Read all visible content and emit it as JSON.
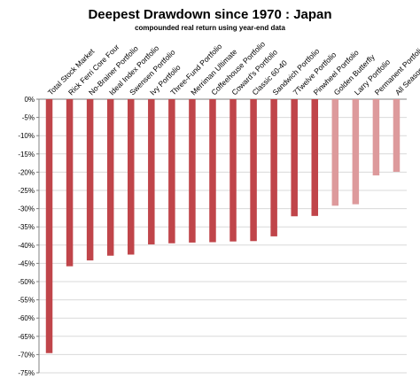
{
  "chart_data": {
    "type": "bar",
    "title": "Deepest Drawdown since 1970 : Japan",
    "subtitle": "compounded real return using year-end data",
    "xlabel": "",
    "ylabel": "",
    "ylim": [
      -75,
      0
    ],
    "ytick_step": 5,
    "ytick_format": "%",
    "grid": "horizontal",
    "legend": "none",
    "colors": {
      "dark": "#c0454a",
      "light": "#dd9a9c",
      "grid": "#d9d9d9"
    },
    "categories": [
      "Total Stock Market",
      "Rick Ferri Core Four",
      "No-Brainer Portfolio",
      "Ideal Index Portfolio",
      "Swensen Portfolio",
      "Ivy Portfolio",
      "Three-Fund Portfolio",
      "Merriman Ultimate",
      "Coffeehouse Portfolio",
      "Coward's Portfolio",
      "Classic 60-40",
      "Sandwich Portfolio",
      "7Twelve Portfolio",
      "Pinwheel Portfolio",
      "Golden Butterfly",
      "Larry Portfolio",
      "Permanent Portfolio",
      "All Seasons Portfolio"
    ],
    "values": [
      -69.6,
      -45.8,
      -44.2,
      -42.9,
      -42.6,
      -39.8,
      -39.5,
      -39.3,
      -39.2,
      -39.0,
      -38.9,
      -37.6,
      -32.1,
      -32.0,
      -29.2,
      -28.8,
      -20.9,
      -19.9
    ],
    "shade": [
      "dark",
      "dark",
      "dark",
      "dark",
      "dark",
      "dark",
      "dark",
      "dark",
      "dark",
      "dark",
      "dark",
      "dark",
      "dark",
      "dark",
      "light",
      "light",
      "light",
      "light"
    ]
  }
}
